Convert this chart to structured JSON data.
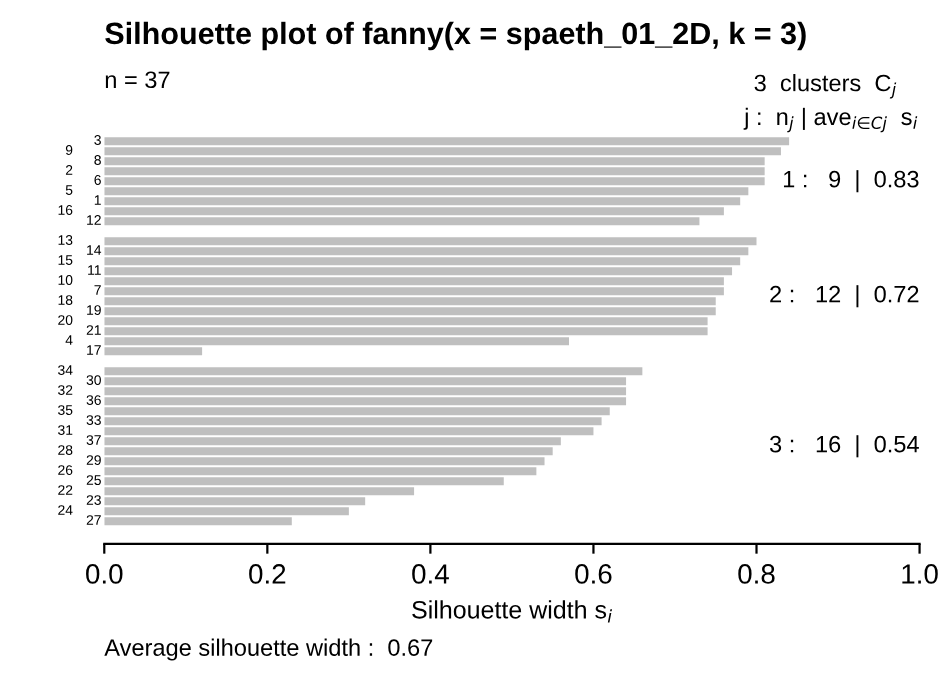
{
  "chart_data": {
    "type": "bar",
    "orientation": "horizontal",
    "title": "Silhouette plot of fanny(x = spaeth_01_2D, k = 3)",
    "xlabel": "Silhouette width s$_{i}$",
    "categories": [
      "3",
      "9",
      "8",
      "2",
      "6",
      "5",
      "1",
      "16",
      "12",
      "13",
      "14",
      "15",
      "11",
      "10",
      "7",
      "18",
      "19",
      "20",
      "21",
      "4",
      "17",
      "34",
      "30",
      "32",
      "36",
      "35",
      "33",
      "31",
      "37",
      "28",
      "29",
      "26",
      "25",
      "22",
      "23",
      "24",
      "27"
    ],
    "series": [
      {
        "color": "#bfbfbf",
        "values": [
          0.84,
          0.83,
          0.81,
          0.81,
          0.81,
          0.79,
          0.78,
          0.76,
          0.73,
          null,
          null,
          null,
          null,
          null,
          null,
          null,
          null,
          null,
          null,
          null,
          null,
          null,
          null,
          null,
          null,
          null,
          null,
          null,
          null,
          null,
          null,
          null,
          null,
          null,
          null,
          null,
          null
        ]
      },
      {
        "color": "#bfbfbf",
        "values": [
          null,
          null,
          null,
          null,
          null,
          null,
          null,
          null,
          null,
          0.8,
          0.79,
          0.78,
          0.77,
          0.76,
          0.76,
          0.75,
          0.75,
          0.74,
          0.74,
          0.57,
          0.12,
          null,
          null,
          null,
          null,
          null,
          null,
          null,
          null,
          null,
          null,
          null,
          null,
          null,
          null,
          null,
          null
        ]
      },
      {
        "color": "#bfbfbf",
        "values": [
          null,
          null,
          null,
          null,
          null,
          null,
          null,
          null,
          null,
          null,
          null,
          null,
          null,
          null,
          null,
          null,
          null,
          null,
          null,
          null,
          null,
          0.66,
          0.64,
          0.64,
          0.64,
          0.62,
          0.61,
          0.6,
          0.56,
          0.55,
          0.54,
          0.53,
          0.49,
          0.38,
          0.32,
          0.3,
          0.23
        ]
      }
    ],
    "xlim": [
      0,
      1
    ],
    "xticks": [
      {
        "value": 0,
        "label": "0.0"
      },
      {
        "value": 0.2,
        "label": "0.2"
      },
      {
        "value": 0.4,
        "label": "0.4"
      },
      {
        "value": 0.6,
        "label": "0.6"
      },
      {
        "value": 0.8,
        "label": "0.8"
      },
      {
        "value": 1,
        "label": "1.0"
      }
    ],
    "grid": false,
    "legend": false,
    "annotations": [
      "n = 37",
      "3  clusters  C$_{j}$",
      "j :  n$_{j}$ | ave$_{i∈Cj}$  s$_{i}$",
      "1 :   9  |  0.83",
      "2 :   12  |  0.72",
      "3 :   16  |  0.54",
      "Average silhouette width :  0.67"
    ]
  }
}
